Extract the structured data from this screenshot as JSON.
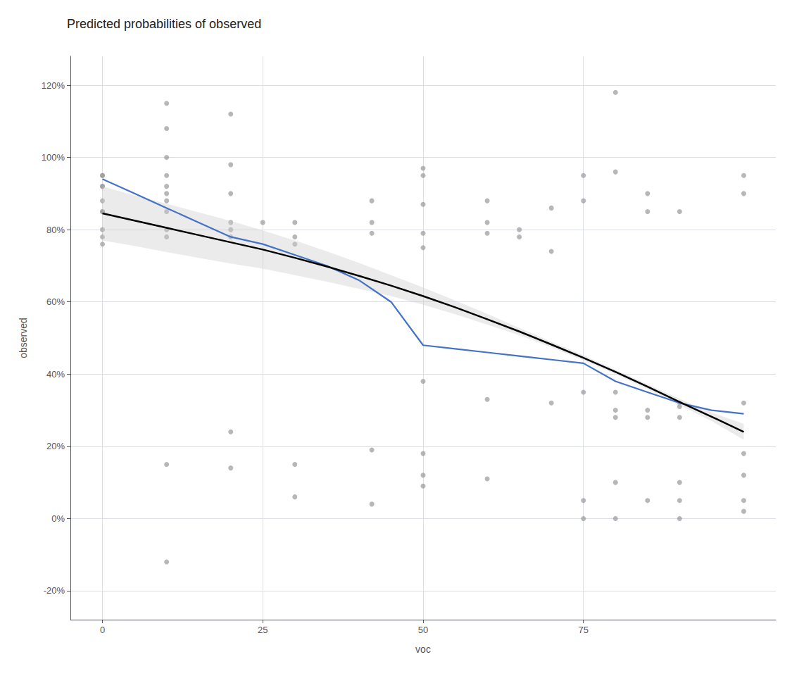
{
  "chart_data": {
    "type": "scatter",
    "title": "Predicted probabilities of observed",
    "xlabel": "voc",
    "ylabel": "observed",
    "xlim": [
      -5,
      105
    ],
    "ylim": [
      -0.28,
      1.28
    ],
    "xticks": [
      0,
      25,
      50,
      75
    ],
    "yticks": [
      {
        "value": -0.2,
        "label": "-20%"
      },
      {
        "value": 0.0,
        "label": "0%"
      },
      {
        "value": 0.2,
        "label": "20%"
      },
      {
        "value": 0.4,
        "label": "40%"
      },
      {
        "value": 0.6,
        "label": "60%"
      },
      {
        "value": 0.8,
        "label": "80%"
      },
      {
        "value": 1.0,
        "label": "100%"
      },
      {
        "value": 1.2,
        "label": "120%"
      }
    ],
    "grid": true,
    "series": [
      {
        "type": "scatter",
        "color": "#999999",
        "marker": "circle",
        "x": [
          0,
          0,
          0,
          0,
          0,
          0,
          0,
          0,
          0,
          0,
          10,
          10,
          10,
          10,
          10,
          10,
          10,
          10,
          10,
          10,
          10,
          10,
          20,
          20,
          20,
          20,
          20,
          20,
          20,
          20,
          25,
          30,
          30,
          30,
          30,
          30,
          42,
          42,
          42,
          42,
          42,
          50,
          50,
          50,
          50,
          50,
          50,
          50,
          50,
          50,
          60,
          60,
          60,
          60,
          60,
          65,
          65,
          70,
          70,
          70,
          75,
          75,
          75,
          75,
          75,
          80,
          80,
          80,
          80,
          80,
          80,
          80,
          85,
          85,
          85,
          85,
          85,
          90,
          90,
          90,
          90,
          90,
          90,
          90,
          100,
          100,
          100,
          100,
          100,
          100,
          100
        ],
        "values": [
          0.95,
          0.92,
          0.85,
          0.78,
          0.85,
          0.92,
          0.95,
          0.88,
          0.8,
          0.76,
          1.15,
          1.08,
          1.0,
          0.95,
          0.92,
          0.9,
          0.88,
          0.85,
          0.8,
          0.78,
          0.15,
          -0.12,
          1.12,
          0.98,
          0.9,
          0.82,
          0.8,
          0.78,
          0.24,
          0.14,
          0.82,
          0.82,
          0.78,
          0.76,
          0.15,
          0.06,
          0.88,
          0.82,
          0.79,
          0.19,
          0.04,
          0.97,
          0.95,
          0.87,
          0.79,
          0.75,
          0.38,
          0.18,
          0.12,
          0.09,
          0.88,
          0.82,
          0.79,
          0.33,
          0.11,
          0.8,
          0.78,
          0.86,
          0.74,
          0.32,
          0.95,
          0.88,
          0.35,
          0.05,
          0.0,
          1.18,
          0.96,
          0.35,
          0.3,
          0.28,
          0.1,
          0.0,
          0.9,
          0.85,
          0.3,
          0.28,
          0.05,
          0.85,
          0.32,
          0.31,
          0.28,
          0.1,
          0.05,
          0.0,
          0.95,
          0.9,
          0.32,
          0.18,
          0.12,
          0.05,
          0.02
        ]
      },
      {
        "type": "band",
        "color": "#cccccc",
        "x": [
          0,
          5,
          10,
          15,
          20,
          25,
          30,
          35,
          40,
          45,
          50,
          55,
          60,
          65,
          70,
          75,
          80,
          85,
          90,
          95,
          100
        ],
        "lower": [
          0.77,
          0.755,
          0.738,
          0.722,
          0.706,
          0.692,
          0.674,
          0.656,
          0.636,
          0.616,
          0.592,
          0.566,
          0.537,
          0.508,
          0.474,
          0.438,
          0.4,
          0.358,
          0.314,
          0.27,
          0.218
        ],
        "upper": [
          0.92,
          0.895,
          0.872,
          0.848,
          0.824,
          0.798,
          0.77,
          0.74,
          0.708,
          0.674,
          0.64,
          0.604,
          0.567,
          0.528,
          0.49,
          0.452,
          0.412,
          0.372,
          0.332,
          0.294,
          0.262
        ]
      },
      {
        "type": "line",
        "color": "#000000",
        "line_style": "solid",
        "x": [
          0,
          5,
          10,
          15,
          20,
          25,
          30,
          35,
          40,
          45,
          50,
          55,
          60,
          65,
          70,
          75,
          80,
          85,
          90,
          95,
          100
        ],
        "values": [
          0.845,
          0.825,
          0.805,
          0.785,
          0.765,
          0.745,
          0.722,
          0.698,
          0.672,
          0.645,
          0.616,
          0.585,
          0.552,
          0.518,
          0.482,
          0.445,
          0.406,
          0.365,
          0.323,
          0.282,
          0.24
        ]
      },
      {
        "type": "line",
        "color": "#4472C4",
        "line_style": "solid",
        "x": [
          0,
          5,
          10,
          15,
          20,
          25,
          30,
          35,
          40,
          45,
          50,
          55,
          60,
          65,
          70,
          75,
          80,
          85,
          90,
          95,
          100
        ],
        "values": [
          0.94,
          0.9,
          0.86,
          0.82,
          0.78,
          0.76,
          0.73,
          0.7,
          0.66,
          0.6,
          0.48,
          0.47,
          0.46,
          0.45,
          0.44,
          0.43,
          0.38,
          0.35,
          0.32,
          0.3,
          0.29
        ]
      }
    ]
  }
}
